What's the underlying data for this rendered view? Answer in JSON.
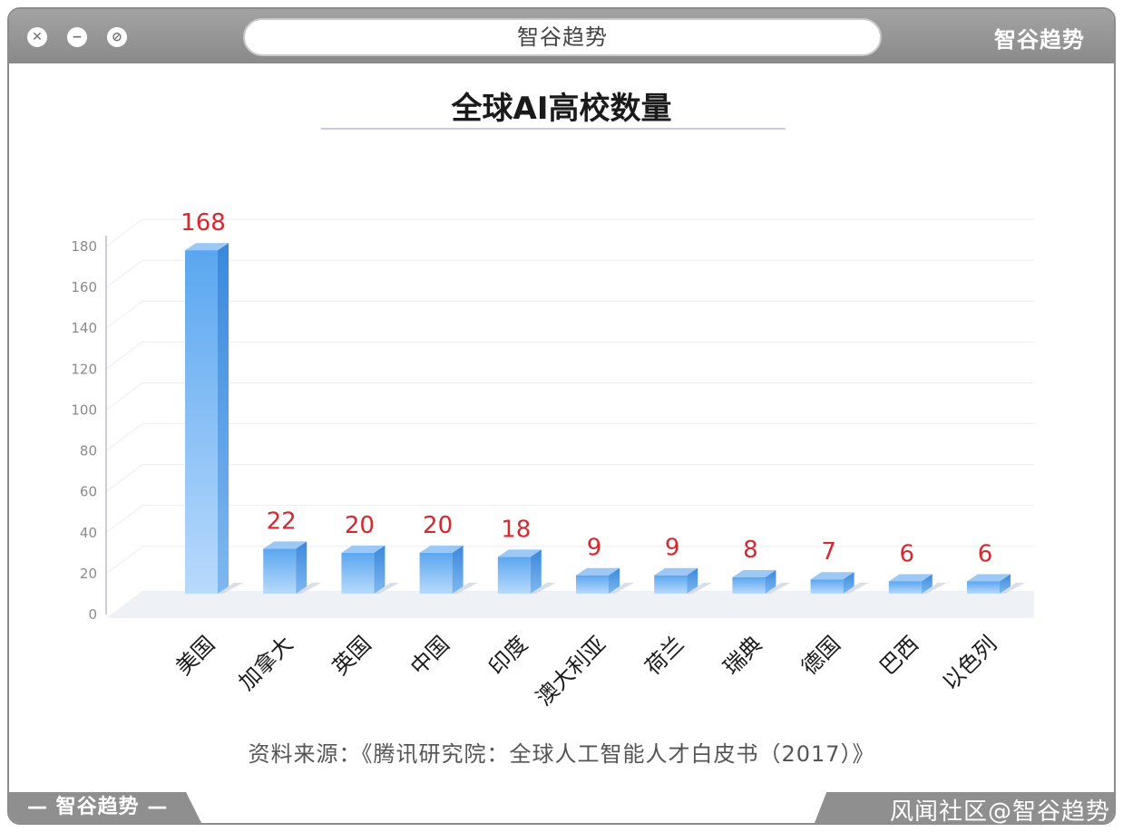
{
  "window": {
    "address_text": "智谷趋势",
    "brand_top_right": "智谷趋势",
    "brand_bottom_left": "— 智谷趋势 —",
    "watermark": "风闻社区@智谷趋势"
  },
  "footer": {
    "source": "资料来源：《腾讯研究院：全球人工智能人才白皮书（2017）》"
  },
  "colors": {
    "bar_front": "#6fb1f2",
    "bar_side": "#3f8ee0",
    "bar_top": "#9cc8f6",
    "value_label": "#d6282f"
  },
  "chart_data": {
    "type": "bar",
    "title": "全球AI高校数量",
    "categories": [
      "美国",
      "加拿大",
      "英国",
      "中国",
      "印度",
      "澳大利亚",
      "荷兰",
      "瑞典",
      "德国",
      "巴西",
      "以色列"
    ],
    "values": [
      168,
      22,
      20,
      20,
      18,
      9,
      9,
      8,
      7,
      6,
      6
    ],
    "yticks": [
      0,
      20,
      40,
      60,
      80,
      100,
      120,
      140,
      160,
      180
    ],
    "ylim": [
      0,
      180
    ],
    "grid": true,
    "legend": "none",
    "xlabel": "",
    "ylabel": ""
  }
}
